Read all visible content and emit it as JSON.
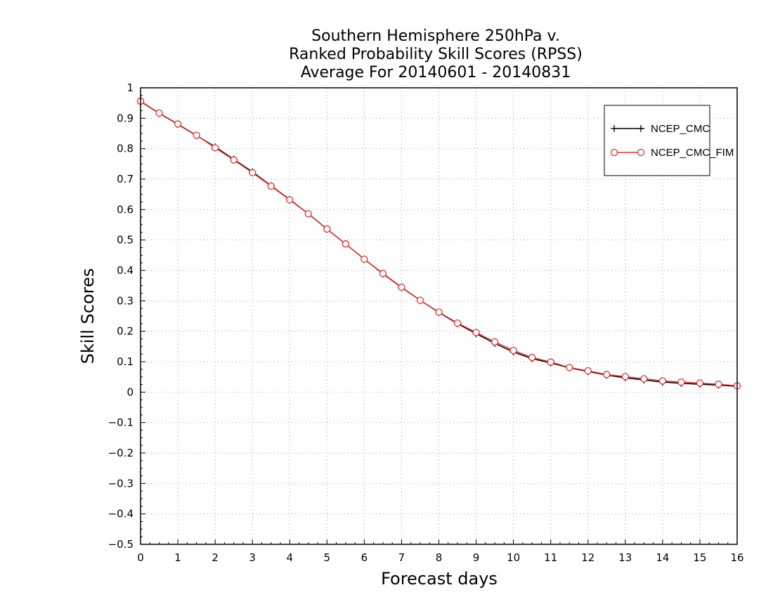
{
  "chart_data": {
    "type": "line",
    "title_lines": [
      "Southern Hemisphere 250hPa v.",
      "Ranked Probability Skill Scores (RPSS)",
      "Average For 20140601 - 20140831"
    ],
    "xlabel": "Forecast days",
    "ylabel": "Skill Scores",
    "xlim": [
      0,
      16
    ],
    "ylim": [
      -0.5,
      1
    ],
    "xticks": [
      0,
      1,
      2,
      3,
      4,
      5,
      6,
      7,
      8,
      9,
      10,
      11,
      12,
      13,
      14,
      15,
      16
    ],
    "yticks": [
      -0.5,
      -0.4,
      -0.3,
      -0.2,
      -0.1,
      0,
      0.1,
      0.2,
      0.3,
      0.4,
      0.5,
      0.6,
      0.7,
      0.8,
      0.9,
      1
    ],
    "ytick_labels": [
      "−0.5",
      "−0.4",
      "−0.3",
      "−0.2",
      "−0.1",
      "0",
      "0.1",
      "0.2",
      "0.3",
      "0.4",
      "0.5",
      "0.6",
      "0.7",
      "0.8",
      "0.9",
      "1"
    ],
    "grid": true,
    "legend_position": "top-right",
    "x": [
      0,
      0.5,
      1,
      1.5,
      2,
      2.5,
      3,
      3.5,
      4,
      4.5,
      5,
      5.5,
      6,
      6.5,
      7,
      7.5,
      8,
      8.5,
      9,
      9.5,
      10,
      10.5,
      11,
      11.5,
      12,
      12.5,
      13,
      13.5,
      14,
      14.5,
      15,
      15.5,
      16
    ],
    "series": [
      {
        "name": "NCEP_CMC",
        "color": "#000000",
        "marker": "plus",
        "values": [
          0.955,
          0.916,
          0.88,
          0.843,
          0.806,
          0.765,
          0.724,
          0.678,
          0.633,
          0.586,
          0.536,
          0.487,
          0.437,
          0.389,
          0.344,
          0.302,
          0.262,
          0.225,
          0.192,
          0.16,
          0.132,
          0.11,
          0.096,
          0.08,
          0.068,
          0.056,
          0.047,
          0.04,
          0.033,
          0.029,
          0.026,
          0.023,
          0.019
        ]
      },
      {
        "name": "NCEP_CMC_FIM",
        "color": "#e03030",
        "marker": "circle",
        "values": [
          0.956,
          0.917,
          0.881,
          0.844,
          0.803,
          0.763,
          0.721,
          0.677,
          0.632,
          0.586,
          0.536,
          0.487,
          0.437,
          0.39,
          0.345,
          0.302,
          0.263,
          0.227,
          0.196,
          0.165,
          0.137,
          0.114,
          0.099,
          0.081,
          0.07,
          0.058,
          0.051,
          0.044,
          0.037,
          0.033,
          0.03,
          0.026,
          0.021
        ]
      }
    ]
  }
}
